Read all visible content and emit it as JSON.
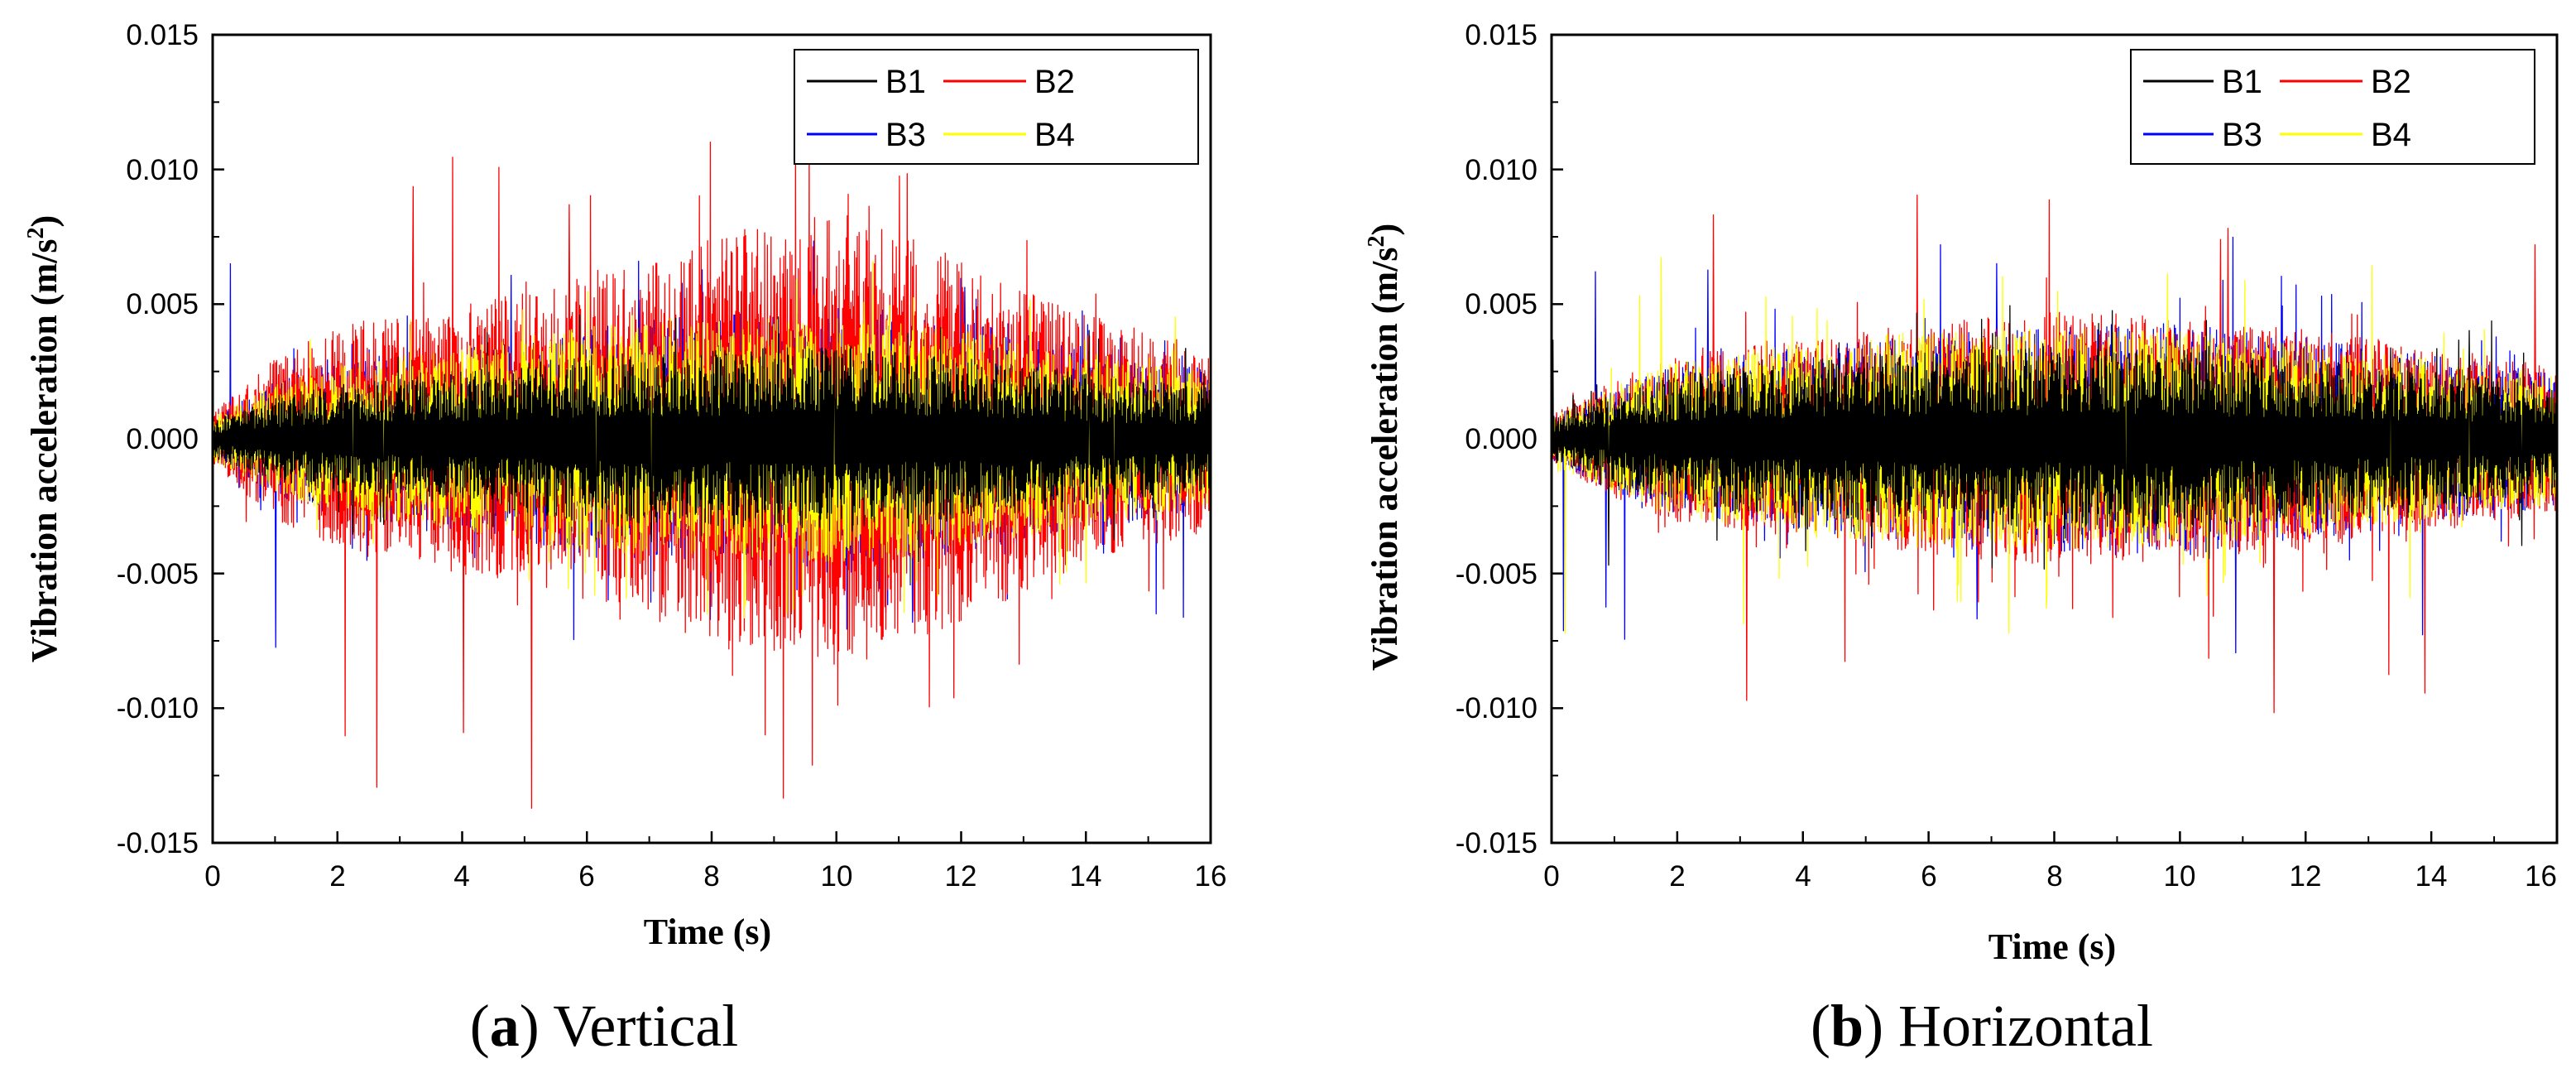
{
  "figure": {
    "panels": [
      {
        "caption_open": "(",
        "caption_letter": "a",
        "caption_close": ")",
        "caption_text": " Vertical"
      },
      {
        "caption_open": "(",
        "caption_letter": "b",
        "caption_close": ")",
        "caption_text": " Horizontal"
      }
    ]
  },
  "chart_data": [
    {
      "type": "line",
      "title": "(a) Vertical",
      "xlabel": "Time (s)",
      "ylabel": "Vibration acceleration (m/s²)",
      "ylabel_main": "Vibration acceleration (m/s",
      "ylabel_sup": "2",
      "ylabel_tail": ")",
      "xlim": [
        0,
        16
      ],
      "ylim": [
        -0.015,
        0.015
      ],
      "xticks": [
        "0",
        "2",
        "4",
        "6",
        "8",
        "10",
        "12",
        "14",
        "16"
      ],
      "yticks": [
        "-0.015",
        "-0.010",
        "-0.005",
        "0.000",
        "0.005",
        "0.010",
        "0.015"
      ],
      "legend_position": "top-right",
      "series": [
        {
          "name": "B1",
          "color": "#000000",
          "envelope": [
            [
              0,
              0.0007
            ],
            [
              1,
              0.0016
            ],
            [
              2,
              0.002
            ],
            [
              4,
              0.0025
            ],
            [
              6,
              0.0031
            ],
            [
              8,
              0.0033
            ],
            [
              10,
              0.0035
            ],
            [
              12,
              0.0031
            ],
            [
              14,
              0.0024
            ],
            [
              16,
              0.0019
            ]
          ],
          "peak_max": 0.0042,
          "peak_min": -0.0042
        },
        {
          "name": "B2",
          "color": "#ff0000",
          "envelope": [
            [
              0,
              0.001
            ],
            [
              1,
              0.003
            ],
            [
              2,
              0.0042
            ],
            [
              4,
              0.005
            ],
            [
              6,
              0.006
            ],
            [
              8,
              0.0074
            ],
            [
              10,
              0.0085
            ],
            [
              12,
              0.0068
            ],
            [
              14,
              0.0046
            ],
            [
              16,
              0.0034
            ]
          ],
          "peak_max": 0.0112,
          "peak_min": -0.0138
        },
        {
          "name": "B3",
          "color": "#0000ff",
          "envelope": [
            [
              0,
              0.0008
            ],
            [
              1,
              0.0021
            ],
            [
              2,
              0.0029
            ],
            [
              4,
              0.0034
            ],
            [
              6,
              0.0043
            ],
            [
              8,
              0.0046
            ],
            [
              10,
              0.0051
            ],
            [
              12,
              0.0044
            ],
            [
              14,
              0.0034
            ],
            [
              16,
              0.0026
            ]
          ],
          "peak_max": 0.0068,
          "peak_min": -0.0079
        },
        {
          "name": "B4",
          "color": "#ffff00",
          "envelope": [
            [
              0,
              0.0008
            ],
            [
              1,
              0.002
            ],
            [
              2,
              0.0028
            ],
            [
              4,
              0.0034
            ],
            [
              6,
              0.0042
            ],
            [
              8,
              0.0044
            ],
            [
              10,
              0.0046
            ],
            [
              12,
              0.0041
            ],
            [
              14,
              0.0032
            ],
            [
              16,
              0.0025
            ]
          ],
          "peak_max": 0.0056,
          "peak_min": -0.0059
        }
      ]
    },
    {
      "type": "line",
      "title": "(b) Horizontal",
      "xlabel": "Time (s)",
      "ylabel": "Vibration acceleration (m/s²)",
      "ylabel_main": "Vibration acceleration (m/s",
      "ylabel_sup": "2",
      "ylabel_tail": ")",
      "xlim": [
        0,
        16
      ],
      "ylim": [
        -0.015,
        0.015
      ],
      "xticks": [
        "0",
        "2",
        "4",
        "6",
        "8",
        "10",
        "12",
        "14",
        "16"
      ],
      "yticks": [
        "-0.015",
        "-0.010",
        "-0.005",
        "0.000",
        "0.005",
        "0.010",
        "0.015"
      ],
      "legend_position": "top-right",
      "series": [
        {
          "name": "B1",
          "color": "#000000",
          "envelope": [
            [
              0,
              0.0008
            ],
            [
              1,
              0.0017
            ],
            [
              2,
              0.0024
            ],
            [
              4,
              0.0029
            ],
            [
              6,
              0.0033
            ],
            [
              8,
              0.0034
            ],
            [
              10,
              0.0033
            ],
            [
              12,
              0.003
            ],
            [
              14,
              0.0025
            ],
            [
              16,
              0.002
            ]
          ],
          "peak_max": 0.0045,
          "peak_min": -0.0048
        },
        {
          "name": "B2",
          "color": "#ff0000",
          "envelope": [
            [
              0,
              0.0009
            ],
            [
              1,
              0.0022
            ],
            [
              2,
              0.0031
            ],
            [
              4,
              0.0037
            ],
            [
              6,
              0.0043
            ],
            [
              8,
              0.0047
            ],
            [
              10,
              0.0046
            ],
            [
              12,
              0.0041
            ],
            [
              14,
              0.0034
            ],
            [
              16,
              0.0027
            ]
          ],
          "peak_max": 0.0094,
          "peak_min": -0.0102
        },
        {
          "name": "B3",
          "color": "#0000ff",
          "envelope": [
            [
              0,
              0.0008
            ],
            [
              1,
              0.002
            ],
            [
              2,
              0.0028
            ],
            [
              4,
              0.0034
            ],
            [
              6,
              0.0039
            ],
            [
              8,
              0.0042
            ],
            [
              10,
              0.0043
            ],
            [
              12,
              0.0038
            ],
            [
              14,
              0.0031
            ],
            [
              16,
              0.0025
            ]
          ],
          "peak_max": 0.0079,
          "peak_min": -0.0081
        },
        {
          "name": "B4",
          "color": "#ffff00",
          "envelope": [
            [
              0,
              0.0008
            ],
            [
              1,
              0.002
            ],
            [
              2,
              0.0029
            ],
            [
              4,
              0.0036
            ],
            [
              6,
              0.0041
            ],
            [
              8,
              0.0041
            ],
            [
              10,
              0.004
            ],
            [
              12,
              0.0036
            ],
            [
              14,
              0.003
            ],
            [
              16,
              0.0024
            ]
          ],
          "peak_max": 0.0068,
          "peak_min": -0.0074
        }
      ]
    }
  ]
}
